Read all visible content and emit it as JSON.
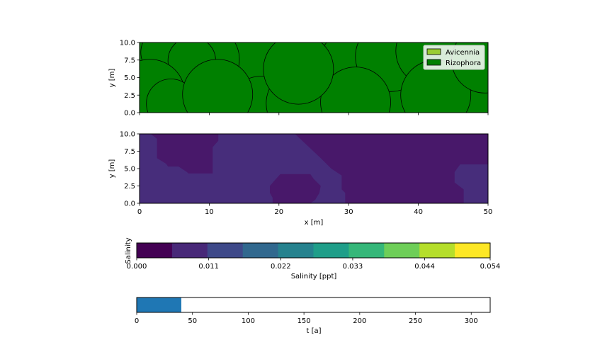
{
  "chart_data": [
    {
      "type": "scatter",
      "subtype": "tree-crown-map",
      "xlim": [
        0,
        50
      ],
      "ylim": [
        0,
        10
      ],
      "ylabel": "y [m]",
      "xticks": [],
      "yticks": [
        "0.0",
        "2.5",
        "5.0",
        "7.5",
        "10.0"
      ],
      "legend": {
        "placement": "top-right",
        "items": [
          {
            "label": "Avicennia",
            "color": "#9acd32"
          },
          {
            "label": "Rizophora",
            "color": "#008000"
          }
        ]
      },
      "trees": [
        {
          "species": "Rizophora",
          "x": 3.5,
          "y": 8.6,
          "r": 3.3
        },
        {
          "species": "Rizophora",
          "x": 9.5,
          "y": 7.6,
          "r": 4.8
        },
        {
          "species": "Rizophora",
          "x": 7.5,
          "y": 7.4,
          "r": 3.4
        },
        {
          "species": "Rizophora",
          "x": 1.5,
          "y": 2.6,
          "r": 5.0
        },
        {
          "species": "Rizophora",
          "x": 4.5,
          "y": 1.3,
          "r": 3.5
        },
        {
          "species": "Rizophora",
          "x": 17.5,
          "y": 0.2,
          "r": 5.0
        },
        {
          "species": "Rizophora",
          "x": 11.2,
          "y": 2.6,
          "r": 5.0
        },
        {
          "species": "Rizophora",
          "x": 23.2,
          "y": 1.3,
          "r": 5.0
        },
        {
          "species": "Rizophora",
          "x": 30.5,
          "y": 7.2,
          "r": 4.6
        },
        {
          "species": "Rizophora",
          "x": 36.0,
          "y": 8.0,
          "r": 5.0
        },
        {
          "species": "Rizophora",
          "x": 31.0,
          "y": 1.5,
          "r": 5.0
        },
        {
          "species": "Rizophora",
          "x": 41.8,
          "y": 8.8,
          "r": 5.0
        },
        {
          "species": "Rizophora",
          "x": 42.5,
          "y": 2.5,
          "r": 5.0
        },
        {
          "species": "Rizophora",
          "x": 49.5,
          "y": 7.5,
          "r": 4.7
        },
        {
          "species": "Rizophora",
          "x": 22.8,
          "y": 6.2,
          "r": 5.0
        }
      ]
    },
    {
      "type": "heatmap",
      "subtype": "filled-contour",
      "xlim": [
        0,
        50
      ],
      "ylim": [
        0,
        10
      ],
      "xlabel": "x [m]",
      "ylabel": "y [m]",
      "xticks": [
        "0",
        "10",
        "20",
        "30",
        "40",
        "50"
      ],
      "yticks": [
        "0.0",
        "2.5",
        "5.0",
        "7.5",
        "10.0"
      ],
      "background_color": "#472d7b",
      "regions": [
        {
          "level": "0.000–0.0054",
          "color": "#48186a",
          "points": [
            [
              1.6,
              10
            ],
            [
              11.3,
              10
            ],
            [
              11.3,
              9.0
            ],
            [
              10.5,
              8.1
            ],
            [
              10.5,
              4.3
            ],
            [
              7.0,
              4.3
            ],
            [
              6.8,
              4.5
            ],
            [
              5.6,
              5.3
            ],
            [
              4.1,
              5.3
            ],
            [
              3.8,
              5.7
            ],
            [
              2.5,
              6.5
            ],
            [
              2.5,
              9.3
            ]
          ]
        },
        {
          "level": "0.000–0.0054",
          "color": "#48186a",
          "points": [
            [
              22.3,
              10
            ],
            [
              50,
              10
            ],
            [
              50,
              5.6
            ],
            [
              46.0,
              5.6
            ],
            [
              45.2,
              4.5
            ],
            [
              45.2,
              3.0
            ],
            [
              46.5,
              2.0
            ],
            [
              46.5,
              0
            ],
            [
              29.5,
              0
            ],
            [
              29.5,
              1.5
            ],
            [
              29.0,
              2.0
            ],
            [
              29.0,
              4.0
            ],
            [
              27.5,
              5.0
            ],
            [
              26.0,
              6.5
            ]
          ]
        },
        {
          "level": "0.000–0.0054",
          "color": "#48186a",
          "points": [
            [
              19.1,
              0
            ],
            [
              24.5,
              0
            ],
            [
              25.2,
              0.5
            ],
            [
              25.8,
              1.5
            ],
            [
              26.0,
              2.5
            ],
            [
              25.0,
              3.5
            ],
            [
              24.5,
              4.2
            ],
            [
              20.2,
              4.2
            ],
            [
              19.3,
              3.2
            ],
            [
              18.7,
              2.5
            ],
            [
              18.7,
              1.5
            ],
            [
              19.1,
              0.8
            ]
          ]
        }
      ]
    },
    {
      "type": "colorbar",
      "label": "Salinity",
      "xlabel": "Salinity [ppt]",
      "range": [
        0,
        0.054
      ],
      "tick_labels": [
        "0.000",
        "0.011",
        "0.022",
        "0.033",
        "0.044",
        "0.054"
      ],
      "colors": [
        "#440154",
        "#482878",
        "#3e4989",
        "#31688e",
        "#26828e",
        "#1f9e89",
        "#35b779",
        "#6ece58",
        "#b5de2b",
        "#fde725"
      ]
    },
    {
      "type": "bar",
      "orientation": "horizontal",
      "subtype": "progress",
      "xlabel": "t [a]",
      "xlim": [
        0,
        317
      ],
      "xticks": [
        "0",
        "50",
        "100",
        "150",
        "200",
        "250",
        "300"
      ],
      "value": 40,
      "color": "#1f77b4"
    }
  ]
}
